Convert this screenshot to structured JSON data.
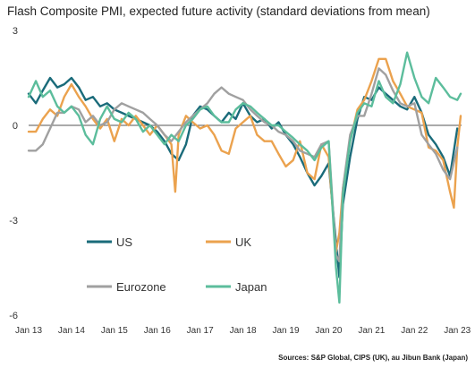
{
  "chart_data": {
    "type": "line",
    "title": "Flash Composite PMI, expected future activity (standard deviations from mean)",
    "source": "Sources: S&P Global, CIPS (UK), au Jibun Bank (Japan)",
    "xlabel": "",
    "ylabel": "",
    "ylim": [
      -6,
      3
    ],
    "yticks": [
      3,
      0,
      -3,
      -6
    ],
    "xlim": [
      2013.0,
      2023.1
    ],
    "xticks": [
      {
        "label": "Jan 13",
        "value": 2013
      },
      {
        "label": "Jan 14",
        "value": 2014
      },
      {
        "label": "Jan 15",
        "value": 2015
      },
      {
        "label": "Jan 16",
        "value": 2016
      },
      {
        "label": "Jan 17",
        "value": 2017
      },
      {
        "label": "Jan 18",
        "value": 2018
      },
      {
        "label": "Jan 19",
        "value": 2019
      },
      {
        "label": "Jan 20",
        "value": 2020
      },
      {
        "label": "Jan 21",
        "value": 2021
      },
      {
        "label": "Jan 22",
        "value": 2022
      },
      {
        "label": "Jan 23",
        "value": 2023
      }
    ],
    "legend_placement": "inside-lower-left",
    "series": [
      {
        "name": "US",
        "color": "#1a6b7a",
        "x": [
          2013.0,
          2013.17,
          2013.33,
          2013.5,
          2013.67,
          2013.83,
          2014.0,
          2014.17,
          2014.33,
          2014.5,
          2014.67,
          2014.83,
          2015.0,
          2015.17,
          2015.33,
          2015.5,
          2015.67,
          2015.83,
          2016.0,
          2016.17,
          2016.33,
          2016.5,
          2016.67,
          2016.83,
          2017.0,
          2017.17,
          2017.33,
          2017.5,
          2017.67,
          2017.83,
          2018.0,
          2018.17,
          2018.33,
          2018.5,
          2018.67,
          2018.83,
          2019.0,
          2019.17,
          2019.33,
          2019.5,
          2019.67,
          2019.83,
          2020.0,
          2020.17,
          2020.25,
          2020.33,
          2020.5,
          2020.67,
          2020.83,
          2021.0,
          2021.17,
          2021.33,
          2021.5,
          2021.67,
          2021.83,
          2022.0,
          2022.17,
          2022.33,
          2022.5,
          2022.67,
          2022.83,
          2023.0
        ],
        "values": [
          1.0,
          0.7,
          1.1,
          1.5,
          1.2,
          1.3,
          1.5,
          1.2,
          0.8,
          0.9,
          0.6,
          0.7,
          0.5,
          0.4,
          0.3,
          0.2,
          0.1,
          0.0,
          -0.2,
          -0.5,
          -0.9,
          -1.1,
          -0.6,
          0.3,
          0.6,
          0.5,
          0.3,
          0.1,
          0.4,
          0.2,
          0.7,
          0.3,
          0.1,
          0.2,
          -0.1,
          0.1,
          -0.3,
          -0.6,
          -1.0,
          -1.5,
          -1.9,
          -1.6,
          -1.2,
          -3.7,
          -4.8,
          -2.5,
          -1.0,
          0.2,
          0.9,
          0.8,
          1.2,
          1.0,
          0.8,
          0.6,
          0.5,
          0.9,
          0.4,
          -0.3,
          -0.6,
          -1.0,
          -1.6,
          -0.1
        ]
      },
      {
        "name": "UK",
        "color": "#eba24e",
        "x": [
          2013.0,
          2013.17,
          2013.33,
          2013.5,
          2013.67,
          2013.83,
          2014.0,
          2014.17,
          2014.33,
          2014.5,
          2014.67,
          2014.83,
          2015.0,
          2015.17,
          2015.33,
          2015.5,
          2015.67,
          2015.83,
          2016.0,
          2016.17,
          2016.33,
          2016.42,
          2016.5,
          2016.67,
          2016.83,
          2017.0,
          2017.17,
          2017.33,
          2017.5,
          2017.67,
          2017.83,
          2018.0,
          2018.17,
          2018.33,
          2018.5,
          2018.67,
          2018.83,
          2019.0,
          2019.17,
          2019.33,
          2019.5,
          2019.67,
          2019.83,
          2020.0,
          2020.17,
          2020.25,
          2020.33,
          2020.5,
          2020.67,
          2020.83,
          2021.0,
          2021.17,
          2021.33,
          2021.5,
          2021.67,
          2021.83,
          2022.0,
          2022.17,
          2022.33,
          2022.5,
          2022.67,
          2022.83,
          2022.92,
          2023.0,
          2023.08
        ],
        "values": [
          -0.2,
          -0.2,
          0.2,
          0.5,
          0.3,
          0.9,
          1.3,
          0.9,
          0.6,
          0.2,
          -0.1,
          0.2,
          -0.5,
          0.2,
          0.0,
          0.3,
          0.0,
          -0.3,
          0.0,
          -0.3,
          -0.6,
          -2.1,
          -0.3,
          0.3,
          0.1,
          -0.1,
          0.0,
          -0.3,
          -0.8,
          -0.9,
          -0.1,
          0.1,
          0.3,
          -0.3,
          -0.5,
          -0.5,
          -0.9,
          -1.3,
          -1.1,
          -0.5,
          -1.5,
          -1.7,
          -0.6,
          -1.0,
          -4.0,
          -3.4,
          -2.0,
          -0.5,
          0.5,
          0.8,
          1.4,
          2.1,
          2.1,
          1.4,
          1.0,
          0.6,
          0.5,
          0.4,
          -0.7,
          -0.8,
          -1.1,
          -2.1,
          -2.6,
          -0.7,
          0.3
        ]
      },
      {
        "name": "Eurozone",
        "color": "#a0a0a0",
        "x": [
          2013.0,
          2013.17,
          2013.33,
          2013.5,
          2013.67,
          2013.83,
          2014.0,
          2014.17,
          2014.33,
          2014.5,
          2014.67,
          2014.83,
          2015.0,
          2015.17,
          2015.33,
          2015.5,
          2015.67,
          2015.83,
          2016.0,
          2016.17,
          2016.33,
          2016.5,
          2016.67,
          2016.83,
          2017.0,
          2017.17,
          2017.33,
          2017.5,
          2017.67,
          2017.83,
          2018.0,
          2018.17,
          2018.33,
          2018.5,
          2018.67,
          2018.83,
          2019.0,
          2019.17,
          2019.33,
          2019.5,
          2019.67,
          2019.83,
          2020.0,
          2020.17,
          2020.25,
          2020.33,
          2020.5,
          2020.67,
          2020.83,
          2021.0,
          2021.17,
          2021.33,
          2021.5,
          2021.67,
          2021.83,
          2022.0,
          2022.17,
          2022.33,
          2022.5,
          2022.67,
          2022.83,
          2023.0
        ],
        "values": [
          -0.8,
          -0.8,
          -0.6,
          -0.1,
          0.4,
          0.4,
          0.6,
          0.5,
          0.1,
          0.3,
          0.0,
          0.1,
          0.5,
          0.7,
          0.6,
          0.5,
          0.4,
          0.2,
          0.0,
          -0.3,
          -0.5,
          -0.2,
          0.1,
          0.3,
          0.5,
          0.7,
          1.0,
          1.2,
          1.0,
          0.9,
          0.8,
          0.5,
          0.3,
          0.1,
          0.0,
          -0.2,
          -0.3,
          -0.5,
          -0.8,
          -0.9,
          -1.0,
          -0.6,
          -0.5,
          -4.1,
          -4.3,
          -2.0,
          -0.3,
          0.3,
          0.3,
          1.0,
          1.8,
          1.6,
          1.1,
          0.7,
          0.6,
          0.7,
          -0.3,
          -0.6,
          -0.9,
          -1.4,
          -1.7,
          -0.7
        ]
      },
      {
        "name": "Japan",
        "color": "#5cbd9c",
        "x": [
          2013.0,
          2013.17,
          2013.33,
          2013.5,
          2013.67,
          2013.83,
          2014.0,
          2014.17,
          2014.33,
          2014.5,
          2014.67,
          2014.83,
          2015.0,
          2015.17,
          2015.33,
          2015.5,
          2015.67,
          2015.83,
          2016.0,
          2016.17,
          2016.33,
          2016.5,
          2016.67,
          2016.83,
          2017.0,
          2017.17,
          2017.33,
          2017.5,
          2017.67,
          2017.83,
          2018.0,
          2018.17,
          2018.33,
          2018.5,
          2018.67,
          2018.83,
          2019.0,
          2019.17,
          2019.33,
          2019.5,
          2019.67,
          2019.83,
          2020.0,
          2020.17,
          2020.25,
          2020.33,
          2020.5,
          2020.67,
          2020.83,
          2021.0,
          2021.17,
          2021.33,
          2021.5,
          2021.67,
          2021.83,
          2022.0,
          2022.17,
          2022.33,
          2022.5,
          2022.67,
          2022.83,
          2023.0,
          2023.08
        ],
        "values": [
          0.9,
          1.4,
          0.9,
          1.1,
          0.6,
          0.4,
          0.6,
          0.3,
          -0.3,
          -0.6,
          0.2,
          0.6,
          0.2,
          0.1,
          0.4,
          0.2,
          -0.2,
          0.0,
          -0.3,
          -0.6,
          -0.3,
          -0.5,
          0.0,
          0.2,
          0.5,
          0.6,
          0.3,
          0.1,
          0.1,
          0.5,
          0.7,
          0.6,
          0.4,
          0.2,
          0.0,
          0.0,
          -0.2,
          -0.4,
          -0.6,
          -0.8,
          -1.1,
          -0.7,
          -0.5,
          -4.5,
          -5.6,
          -2.2,
          -0.5,
          0.4,
          0.7,
          0.6,
          1.4,
          0.9,
          0.7,
          1.3,
          2.3,
          1.5,
          0.9,
          0.7,
          1.5,
          1.2,
          0.9,
          0.8,
          1.0
        ]
      }
    ]
  }
}
